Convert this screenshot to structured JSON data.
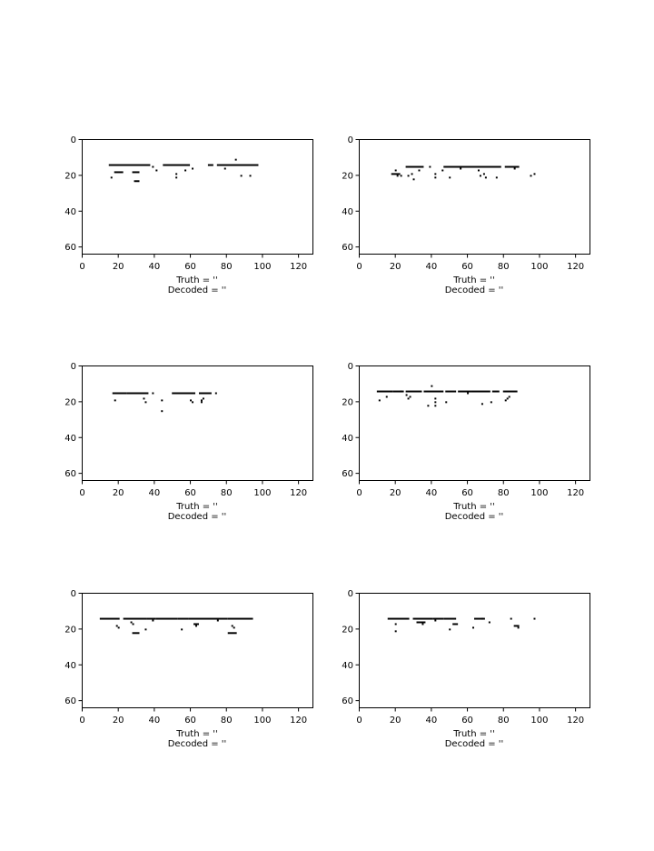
{
  "chart_data": [
    {
      "type": "heatmap",
      "xlim": [
        0,
        128
      ],
      "ylim": [
        64,
        0
      ],
      "xticks": [
        0,
        20,
        40,
        60,
        80,
        100,
        120
      ],
      "yticks": [
        0,
        20,
        40,
        60
      ],
      "truth_line": "Truth = '฀฀฀฀฀฀฀฀฀฀฀฀฀฀฀฀฀฀฀฀฀฀฀฀฀'",
      "decoded_line": "Decoded = '฀฀฀฀฀฀฀฀฀฀฀฀฀฀฀฀฀฀฀'",
      "segments": [
        [
          15,
          14,
          37
        ],
        [
          45,
          14,
          59
        ],
        [
          70,
          14,
          72
        ],
        [
          75,
          14,
          97
        ],
        [
          18,
          18,
          22
        ],
        [
          28,
          18,
          31
        ],
        [
          29,
          23,
          31
        ]
      ],
      "dots": [
        [
          16,
          21
        ],
        [
          39,
          15
        ],
        [
          41,
          17
        ],
        [
          52,
          19
        ],
        [
          52,
          21
        ],
        [
          57,
          17
        ],
        [
          61,
          16
        ],
        [
          79,
          16
        ],
        [
          85,
          11
        ],
        [
          88,
          20
        ],
        [
          93,
          20
        ]
      ]
    },
    {
      "type": "heatmap",
      "xlim": [
        0,
        128
      ],
      "ylim": [
        64,
        0
      ],
      "xticks": [
        0,
        20,
        40,
        60,
        80,
        100,
        120
      ],
      "yticks": [
        0,
        20,
        40,
        60
      ],
      "truth_line": "Truth = '฀฀฀฀฀฀฀฀฀฀฀฀฀฀฀฀฀฀฀฀฀฀฀฀฀'",
      "decoded_line": "Decoded = '฀฀฀฀฀฀฀฀฀฀฀฀฀฀฀฀฀฀฀฀฀'",
      "segments": [
        [
          26,
          15,
          35
        ],
        [
          47,
          15,
          78
        ],
        [
          81,
          15,
          88
        ],
        [
          18,
          19,
          22
        ]
      ],
      "dots": [
        [
          20,
          17
        ],
        [
          21,
          20
        ],
        [
          23,
          20
        ],
        [
          27,
          20
        ],
        [
          29,
          19
        ],
        [
          30,
          22
        ],
        [
          33,
          17
        ],
        [
          39,
          15
        ],
        [
          42,
          19
        ],
        [
          42,
          21
        ],
        [
          46,
          17
        ],
        [
          50,
          21
        ],
        [
          56,
          16
        ],
        [
          66,
          17
        ],
        [
          67,
          20
        ],
        [
          69,
          19
        ],
        [
          70,
          21
        ],
        [
          76,
          21
        ],
        [
          86,
          16
        ],
        [
          95,
          20
        ],
        [
          97,
          19
        ]
      ]
    },
    {
      "type": "heatmap",
      "xlim": [
        0,
        128
      ],
      "ylim": [
        64,
        0
      ],
      "xticks": [
        0,
        20,
        40,
        60,
        80,
        100,
        120
      ],
      "yticks": [
        0,
        20,
        40,
        60
      ],
      "truth_line": "Truth = '฀฀฀฀฀฀฀฀฀฀฀฀฀฀฀฀฀฀฀฀'",
      "decoded_line": "Decoded = '฀฀฀฀฀฀฀฀฀฀฀฀฀฀'",
      "segments": [
        [
          17,
          15,
          24
        ],
        [
          25,
          15,
          36
        ],
        [
          50,
          15,
          62
        ],
        [
          65,
          15,
          71
        ]
      ],
      "dots": [
        [
          18,
          19
        ],
        [
          34,
          18
        ],
        [
          35,
          20
        ],
        [
          39,
          15
        ],
        [
          44,
          19
        ],
        [
          44,
          25
        ],
        [
          60,
          19
        ],
        [
          61,
          20
        ],
        [
          66,
          19
        ],
        [
          66,
          20
        ],
        [
          67,
          18
        ],
        [
          74,
          15
        ]
      ]
    },
    {
      "type": "heatmap",
      "xlim": [
        0,
        128
      ],
      "ylim": [
        64,
        0
      ],
      "xticks": [
        0,
        20,
        40,
        60,
        80,
        100,
        120
      ],
      "yticks": [
        0,
        20,
        40,
        60
      ],
      "truth_line": "Truth = '฀฀฀฀฀฀฀฀฀฀฀฀฀฀฀฀฀฀฀฀฀฀฀'",
      "decoded_line": "Decoded = '฀฀฀฀฀฀฀฀฀฀฀฀฀฀฀฀฀฀'",
      "segments": [
        [
          10,
          14,
          18
        ],
        [
          19,
          14,
          24
        ],
        [
          26,
          14,
          34
        ],
        [
          36,
          14,
          46
        ],
        [
          48,
          14,
          53
        ],
        [
          55,
          14,
          61
        ],
        [
          62,
          14,
          72
        ],
        [
          74,
          14,
          77
        ],
        [
          80,
          14,
          87
        ],
        [
          42,
          18,
          42
        ],
        [
          42,
          20,
          42
        ],
        [
          42,
          22,
          42
        ]
      ],
      "dots": [
        [
          11,
          19
        ],
        [
          15,
          17
        ],
        [
          23,
          14
        ],
        [
          26,
          16
        ],
        [
          27,
          18
        ],
        [
          28,
          17
        ],
        [
          38,
          22
        ],
        [
          40,
          11
        ],
        [
          48,
          20
        ],
        [
          60,
          15
        ],
        [
          68,
          21
        ],
        [
          73,
          20
        ],
        [
          81,
          19
        ],
        [
          82,
          18
        ],
        [
          83,
          17
        ]
      ]
    },
    {
      "type": "heatmap",
      "xlim": [
        0,
        128
      ],
      "ylim": [
        64,
        0
      ],
      "xticks": [
        0,
        20,
        40,
        60,
        80,
        100,
        120
      ],
      "yticks": [
        0,
        20,
        40,
        60
      ],
      "truth_line": "Truth = '฀฀฀฀฀฀฀฀฀฀฀฀฀฀฀฀฀฀฀฀฀'",
      "decoded_line": "Decoded = '฀฀฀฀฀฀฀฀฀฀฀฀฀฀฀฀฀฀฀฀฀฀฀฀฀฀฀฀฀฀฀'",
      "segments": [
        [
          10,
          14,
          20
        ],
        [
          23,
          14,
          35
        ],
        [
          36,
          14,
          40
        ],
        [
          41,
          14,
          52
        ],
        [
          53,
          14,
          58
        ],
        [
          59,
          14,
          80
        ],
        [
          81,
          14,
          93
        ],
        [
          28,
          22,
          31
        ],
        [
          81,
          22,
          85
        ],
        [
          62,
          17,
          64
        ]
      ],
      "dots": [
        [
          19,
          18
        ],
        [
          20,
          19
        ],
        [
          27,
          16
        ],
        [
          28,
          17
        ],
        [
          35,
          20
        ],
        [
          39,
          15
        ],
        [
          55,
          20
        ],
        [
          63,
          18
        ],
        [
          75,
          15
        ],
        [
          83,
          18
        ],
        [
          84,
          19
        ],
        [
          94,
          14
        ]
      ]
    },
    {
      "type": "heatmap",
      "xlim": [
        0,
        128
      ],
      "ylim": [
        64,
        0
      ],
      "xticks": [
        0,
        20,
        40,
        60,
        80,
        100,
        120
      ],
      "yticks": [
        0,
        20,
        40,
        60
      ],
      "truth_line": "Truth = '฀฀฀฀฀฀฀฀฀฀฀฀฀฀฀฀฀฀฀'",
      "decoded_line": "Decoded = '฀฀฀฀฀฀฀฀฀฀฀฀฀฀฀฀฀฀฀฀฀฀฀฀฀฀฀฀฀฀'",
      "segments": [
        [
          16,
          14,
          27
        ],
        [
          30,
          14,
          40
        ],
        [
          41,
          14,
          46
        ],
        [
          47,
          14,
          53
        ],
        [
          64,
          14,
          69
        ],
        [
          32,
          16,
          36
        ],
        [
          52,
          17,
          54
        ],
        [
          86,
          18,
          88
        ]
      ],
      "dots": [
        [
          20,
          17
        ],
        [
          20,
          21
        ],
        [
          35,
          17
        ],
        [
          42,
          15
        ],
        [
          50,
          20
        ],
        [
          63,
          19
        ],
        [
          68,
          14
        ],
        [
          72,
          16
        ],
        [
          84,
          14
        ],
        [
          88,
          19
        ],
        [
          97,
          14
        ]
      ]
    }
  ]
}
